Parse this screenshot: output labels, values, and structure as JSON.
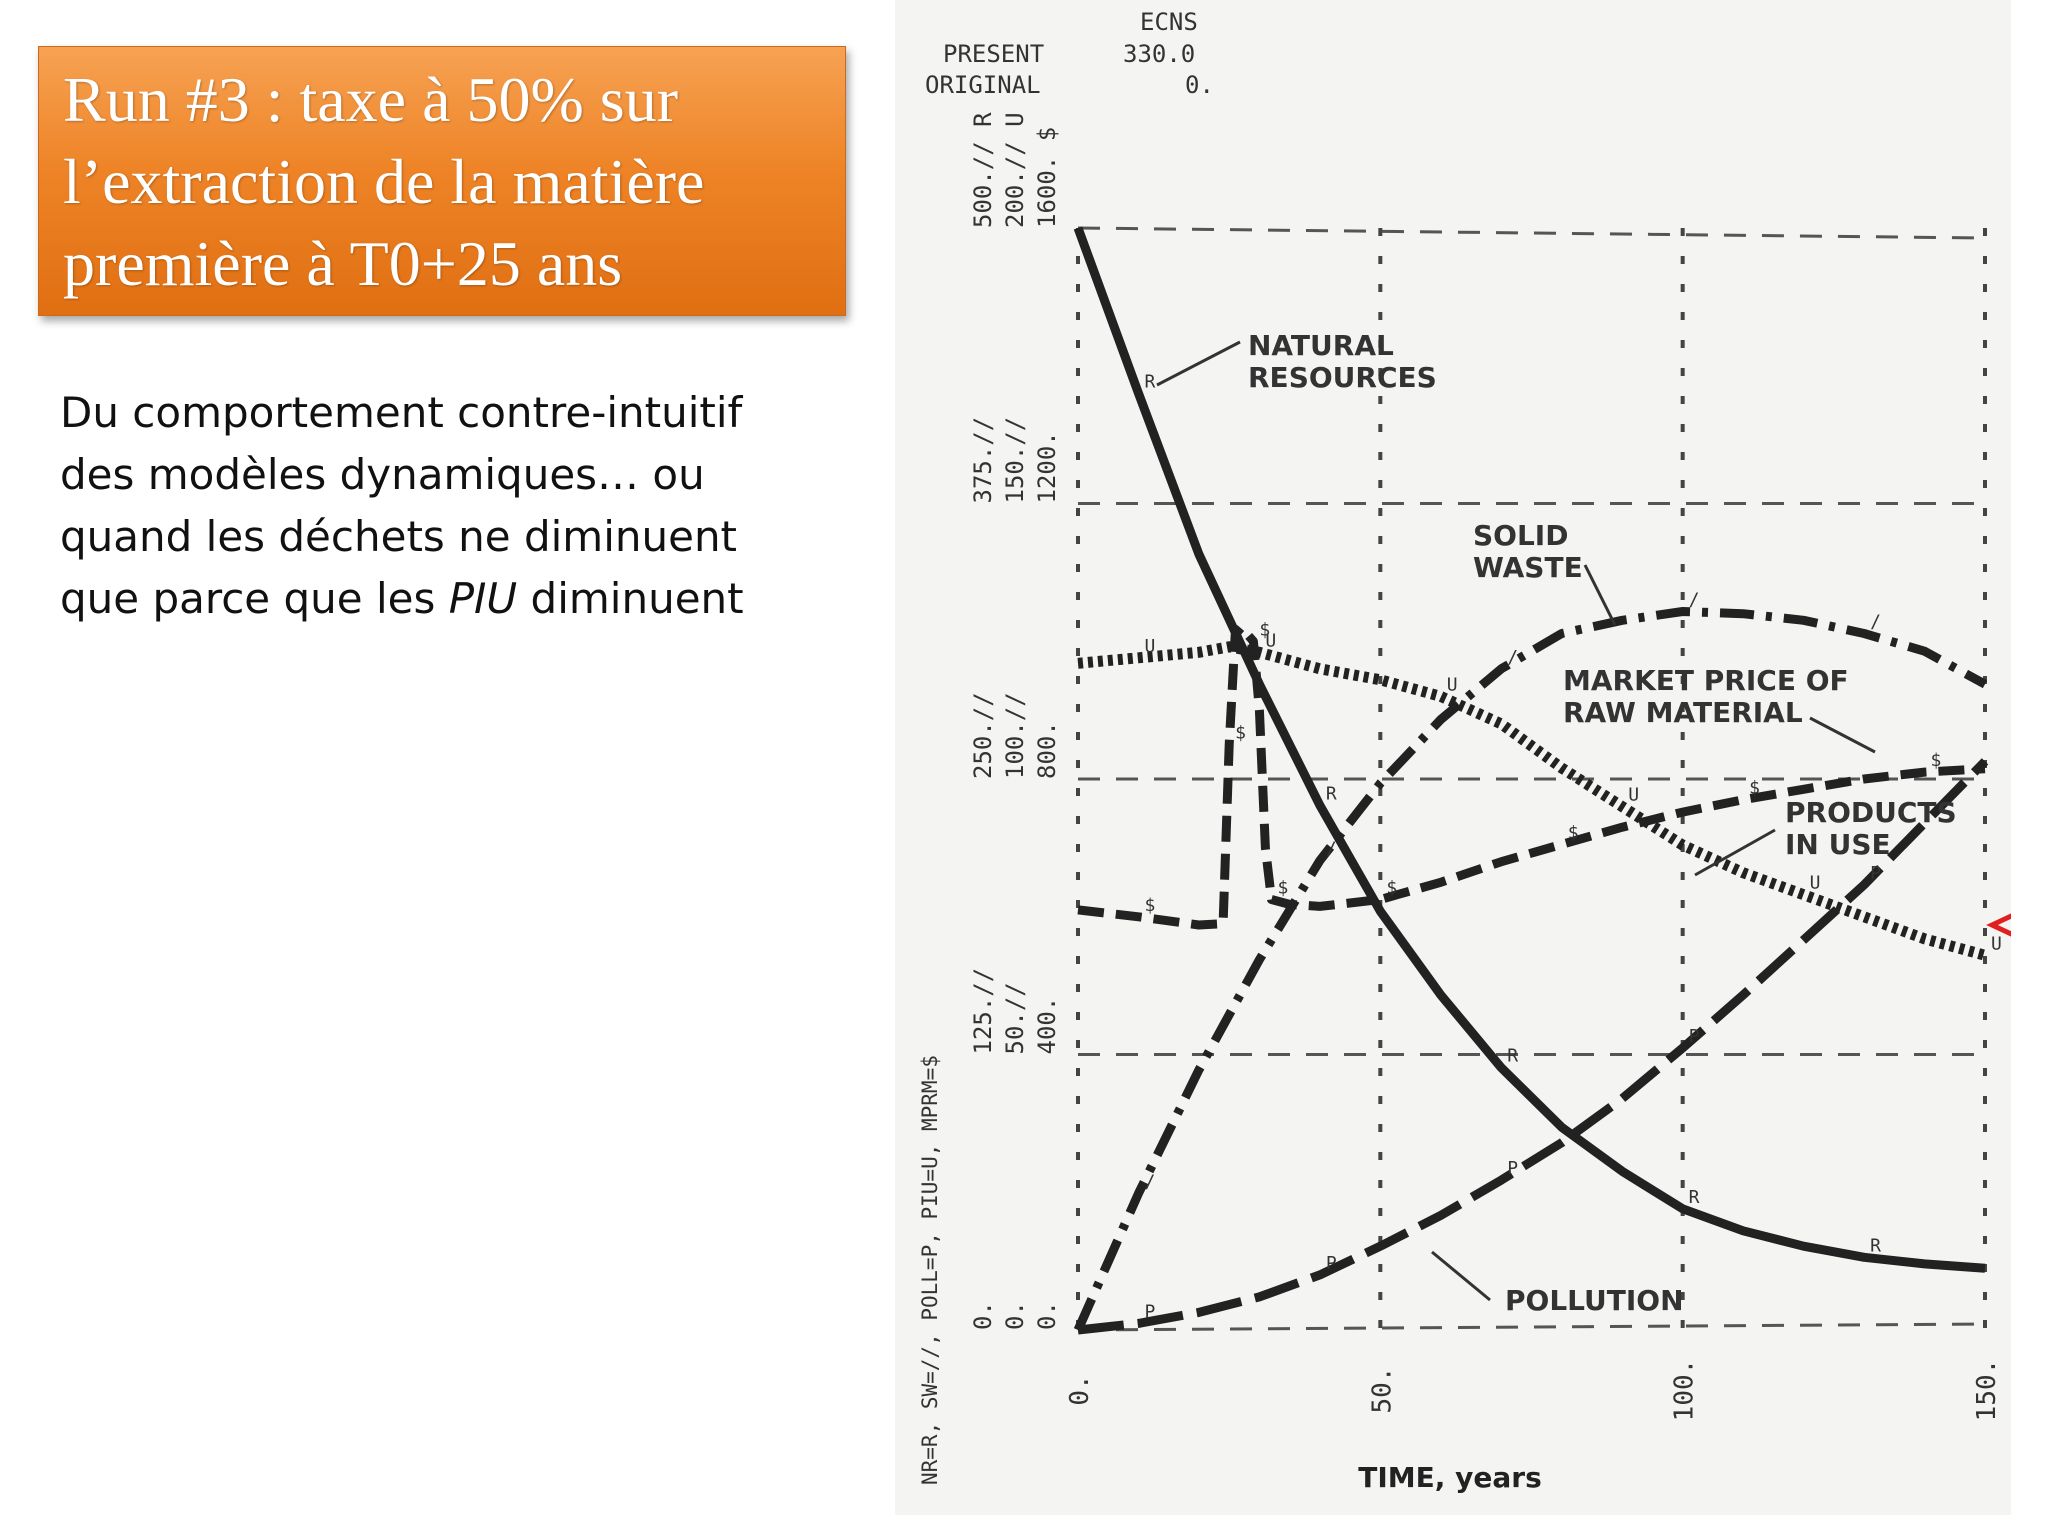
{
  "slide": {
    "title_lines": [
      "Run #3 : taxe à 50% sur",
      "l’extraction de la matière",
      "première à T0+25 ans"
    ],
    "body_before": "Du comportement contre-intuitif\ndes modèles dynamiques… ou\nquand les déchets ne diminuent\nque parce que les ",
    "body_emphasis": "PIU",
    "body_after": " diminuent"
  },
  "chart_data": {
    "type": "line",
    "header": {
      "ecns_label": "ECNS",
      "present_label": "PRESENT",
      "present_value": "330.0",
      "original_label": "ORIGINAL",
      "original_value": "0."
    },
    "xlabel": "TIME, years",
    "ylabel": "NR=R, SW=//, POLL=P, PIU=U, MPRM=$",
    "x_ticks": [
      "0.",
      "50.",
      "100.",
      "150."
    ],
    "xlim": [
      0,
      150
    ],
    "y_tick_columns": [
      [
        "0.",
        "125.//",
        "250.//",
        "375.//",
        "500.// R"
      ],
      [
        "0.",
        "50.//",
        "100.//",
        "150.//",
        "200.// U"
      ],
      [
        "0.",
        "400.",
        "800.",
        "1200.",
        "1600. $"
      ]
    ],
    "ylim_left_scale": [
      0,
      500
    ],
    "grid": true,
    "series": [
      {
        "name": "NATURAL RESOURCES",
        "symbol": "R",
        "style": "solid",
        "x": [
          0,
          10,
          20,
          30,
          40,
          50,
          60,
          70,
          80,
          90,
          100,
          110,
          120,
          130,
          140,
          150
        ],
        "y": [
          500,
          425,
          352,
          293,
          238,
          190,
          152,
          119,
          92,
          72,
          55,
          45,
          38,
          33,
          30,
          28
        ]
      },
      {
        "name": "SOLID WASTE",
        "symbol": "/",
        "style": "dashdot",
        "x": [
          0,
          10,
          20,
          30,
          40,
          50,
          60,
          70,
          80,
          90,
          100,
          110,
          120,
          130,
          140,
          150
        ],
        "y": [
          0,
          62,
          118,
          168,
          213,
          248,
          277,
          300,
          316,
          322,
          326,
          325,
          322,
          316,
          308,
          293
        ]
      },
      {
        "name": "MARKET PRICE OF RAW MATERIAL",
        "symbol": "$",
        "style": "dashed",
        "x": [
          0,
          10,
          20,
          24,
          25,
          26,
          27,
          29,
          30,
          31,
          32,
          35,
          40,
          50,
          60,
          70,
          80,
          90,
          100,
          110,
          120,
          130,
          140,
          150
        ],
        "y": [
          610,
          600,
          588,
          590,
          850,
          1010,
          1020,
          1000,
          900,
          700,
          625,
          618,
          615,
          625,
          650,
          680,
          705,
          730,
          752,
          770,
          785,
          800,
          810,
          815
        ]
      },
      {
        "name": "PRODUCTS IN USE",
        "symbol": "U",
        "style": "dotted",
        "x": [
          0,
          10,
          20,
          25,
          30,
          40,
          50,
          60,
          70,
          80,
          90,
          100,
          110,
          120,
          130,
          140,
          150
        ],
        "y": [
          121,
          122,
          123,
          124,
          123,
          120,
          118,
          115,
          110,
          102,
          95,
          88,
          83,
          79,
          75,
          71,
          68
        ]
      },
      {
        "name": "POLLUTION",
        "symbol": "P",
        "style": "longdash",
        "x": [
          0,
          10,
          20,
          30,
          40,
          50,
          60,
          70,
          80,
          90,
          100,
          110,
          120,
          130,
          140,
          150
        ],
        "y": [
          0,
          3,
          8,
          15,
          25,
          38,
          52,
          68,
          85,
          105,
          128,
          152,
          177,
          202,
          230,
          258
        ]
      }
    ],
    "labels": {
      "natural_resources": [
        "NATURAL",
        "RESOURCES"
      ],
      "solid_waste": [
        "SOLID",
        "WASTE"
      ],
      "market_price": [
        "MARKET  PRICE  OF",
        "RAW  MATERIAL"
      ],
      "products_in_use": [
        "PRODUCTS",
        "IN  USE"
      ],
      "pollution": [
        "POLLUTION"
      ]
    },
    "marker_color": "#e02020"
  }
}
